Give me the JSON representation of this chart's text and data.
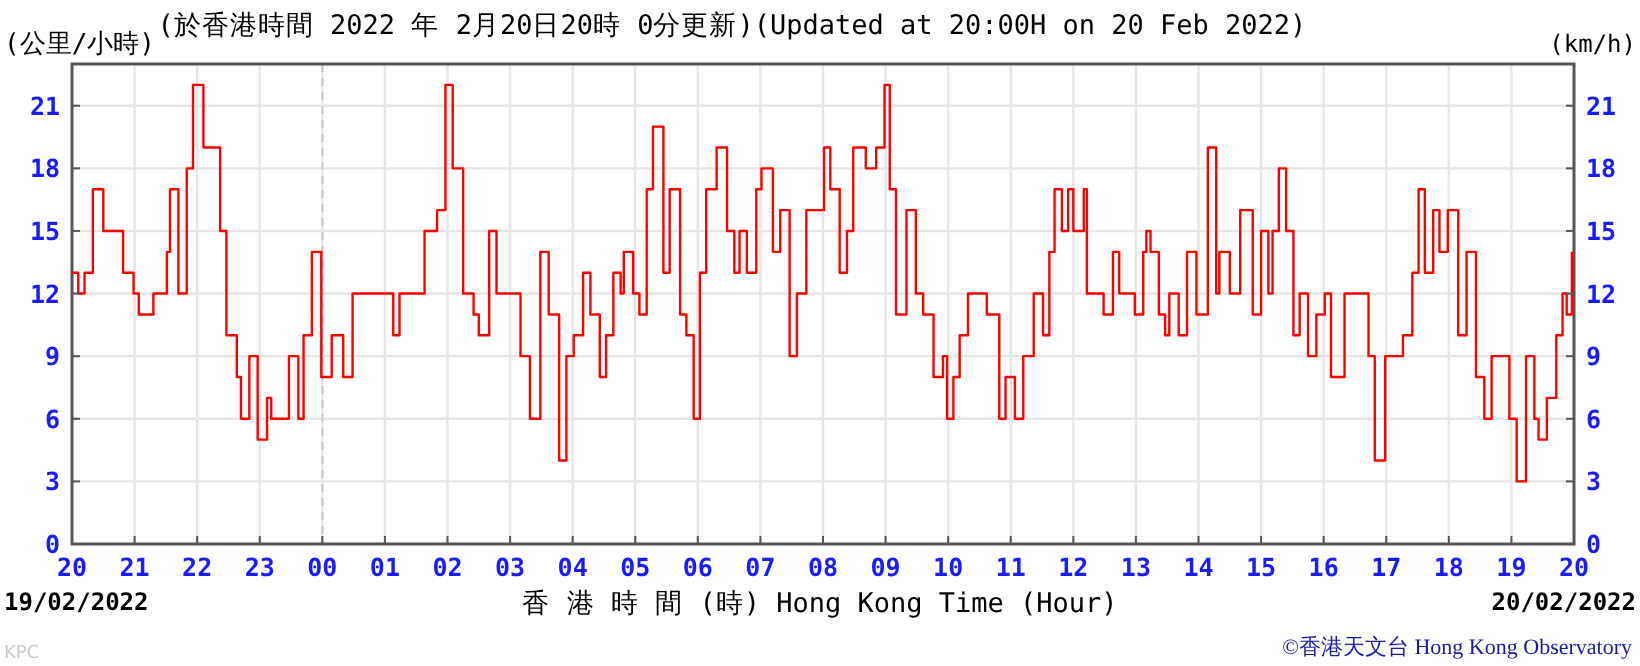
{
  "chart_data": {
    "type": "step",
    "title": "(於香港時間 2022 年 2月20日20時 0分更新)(Updated at 20:00H on 20 Feb 2022)",
    "ylabel": "(公里/小時)",
    "y2label": "(km/h)",
    "xlabel": "香 港 時 間 (時) Hong Kong Time (Hour)",
    "annotations": [
      "19/02/2022",
      "20/02/2022",
      "KPC",
      "©香港天文台 Hong Kong Observatory"
    ],
    "series": [
      {
        "color": "#ff0000",
        "x": [
          "2022-02-19T20:00",
          "2022-02-19T20:06",
          "2022-02-19T20:12",
          "2022-02-19T20:20",
          "2022-02-19T20:27",
          "2022-02-19T20:30",
          "2022-02-19T20:40",
          "2022-02-19T20:49",
          "2022-02-19T20:59",
          "2022-02-19T21:04",
          "2022-02-19T21:18",
          "2022-02-19T21:31",
          "2022-02-19T21:34",
          "2022-02-19T21:42",
          "2022-02-19T21:50",
          "2022-02-19T21:56",
          "2022-02-19T22:06",
          "2022-02-19T22:16",
          "2022-02-19T22:22",
          "2022-02-19T22:28",
          "2022-02-19T22:38",
          "2022-02-19T22:42",
          "2022-02-19T22:50",
          "2022-02-19T22:58",
          "2022-02-19T23:07",
          "2022-02-19T23:11",
          "2022-02-19T23:19",
          "2022-02-19T23:28",
          "2022-02-19T23:37",
          "2022-02-19T23:42",
          "2022-02-19T23:50",
          "2022-02-19T23:59",
          "2022-02-20T00:09",
          "2022-02-20T00:20",
          "2022-02-20T00:29",
          "2022-02-20T01:05",
          "2022-02-20T01:08",
          "2022-02-20T01:14",
          "2022-02-20T01:27",
          "2022-02-20T01:38",
          "2022-02-20T01:50",
          "2022-02-20T01:58",
          "2022-02-20T02:05",
          "2022-02-20T02:15",
          "2022-02-20T02:25",
          "2022-02-20T02:30",
          "2022-02-20T02:40",
          "2022-02-20T02:47",
          "2022-02-20T03:00",
          "2022-02-20T03:10",
          "2022-02-20T03:19",
          "2022-02-20T03:29",
          "2022-02-20T03:37",
          "2022-02-20T03:47",
          "2022-02-20T03:54",
          "2022-02-20T04:01",
          "2022-02-20T04:10",
          "2022-02-20T04:17",
          "2022-02-20T04:26",
          "2022-02-20T04:32",
          "2022-02-20T04:39",
          "2022-02-20T04:46",
          "2022-02-20T04:49",
          "2022-02-20T04:55",
          "2022-02-20T04:58",
          "2022-02-20T05:04",
          "2022-02-20T05:11",
          "2022-02-20T05:17",
          "2022-02-20T05:27",
          "2022-02-20T05:33",
          "2022-02-20T05:43",
          "2022-02-20T05:49",
          "2022-02-20T05:56",
          "2022-02-20T06:02",
          "2022-02-20T06:08",
          "2022-02-20T06:18",
          "2022-02-20T06:28",
          "2022-02-20T06:35",
          "2022-02-20T06:40",
          "2022-02-20T06:47",
          "2022-02-20T06:56",
          "2022-02-20T07:01",
          "2022-02-20T07:12",
          "2022-02-20T07:19",
          "2022-02-20T07:28",
          "2022-02-20T07:35",
          "2022-02-20T07:44",
          "2022-02-20T07:54",
          "2022-02-20T08:01",
          "2022-02-20T08:07",
          "2022-02-20T08:16",
          "2022-02-20T08:23",
          "2022-02-20T08:29",
          "2022-02-20T08:41",
          "2022-02-20T08:51",
          "2022-02-20T08:59",
          "2022-02-20T09:04",
          "2022-02-20T09:10",
          "2022-02-20T09:20",
          "2022-02-20T09:29",
          "2022-02-20T09:36",
          "2022-02-20T09:46",
          "2022-02-20T09:55",
          "2022-02-20T09:59",
          "2022-02-20T10:05",
          "2022-02-20T10:11",
          "2022-02-20T10:19",
          "2022-02-20T10:37",
          "2022-02-20T10:49",
          "2022-02-20T10:55",
          "2022-02-20T11:04",
          "2022-02-20T11:12",
          "2022-02-20T11:22",
          "2022-02-20T11:31",
          "2022-02-20T11:37",
          "2022-02-20T11:42",
          "2022-02-20T11:49",
          "2022-02-20T11:55",
          "2022-02-20T12:00",
          "2022-02-20T12:10",
          "2022-02-20T12:13",
          "2022-02-20T12:29",
          "2022-02-20T12:38",
          "2022-02-20T12:44",
          "2022-02-20T12:59",
          "2022-02-20T13:07",
          "2022-02-20T13:10",
          "2022-02-20T13:14",
          "2022-02-20T13:22",
          "2022-02-20T13:28",
          "2022-02-20T13:32",
          "2022-02-20T13:41",
          "2022-02-20T13:49",
          "2022-02-20T13:58",
          "2022-02-20T14:09",
          "2022-02-20T14:17",
          "2022-02-20T14:20",
          "2022-02-20T14:30",
          "2022-02-20T14:40",
          "2022-02-20T14:52",
          "2022-02-20T15:00",
          "2022-02-20T15:07",
          "2022-02-20T15:11",
          "2022-02-20T15:17",
          "2022-02-20T15:24",
          "2022-02-20T15:31",
          "2022-02-20T15:37",
          "2022-02-20T15:45",
          "2022-02-20T15:53",
          "2022-02-20T16:01",
          "2022-02-20T16:07",
          "2022-02-20T16:14",
          "2022-02-20T16:20",
          "2022-02-20T16:35",
          "2022-02-20T16:43",
          "2022-02-20T16:49",
          "2022-02-20T16:59",
          "2022-02-20T17:07",
          "2022-02-20T17:16",
          "2022-02-20T17:25",
          "2022-02-20T17:31",
          "2022-02-20T17:37",
          "2022-02-20T17:45",
          "2022-02-20T17:51",
          "2022-02-20T17:59",
          "2022-02-20T18:09",
          "2022-02-20T18:17",
          "2022-02-20T18:26",
          "2022-02-20T18:34",
          "2022-02-20T18:41",
          "2022-02-20T18:54",
          "2022-02-20T18:58",
          "2022-02-20T19:05",
          "2022-02-20T19:14",
          "2022-02-20T19:22",
          "2022-02-20T19:26",
          "2022-02-20T19:34",
          "2022-02-20T19:43",
          "2022-02-20T19:49",
          "2022-02-20T19:53",
          "2022-02-20T19:58"
        ],
        "values": [
          13,
          12,
          13,
          17,
          17,
          15,
          15,
          13,
          12,
          11,
          12,
          14,
          17,
          12,
          18,
          22,
          19,
          19,
          15,
          10,
          8,
          6,
          9,
          5,
          7,
          6,
          6,
          9,
          6,
          10,
          14,
          8,
          10,
          8,
          12,
          12,
          10,
          12,
          12,
          15,
          16,
          22,
          18,
          12,
          11,
          10,
          15,
          12,
          12,
          9,
          6,
          14,
          11,
          4,
          9,
          10,
          13,
          11,
          8,
          10,
          13,
          12,
          14,
          14,
          12,
          11,
          17,
          20,
          13,
          17,
          11,
          10,
          6,
          13,
          17,
          19,
          15,
          13,
          15,
          13,
          17,
          18,
          14,
          16,
          9,
          12,
          16,
          16,
          19,
          17,
          13,
          15,
          19,
          18,
          19,
          22,
          17,
          11,
          16,
          12,
          11,
          8,
          9,
          6,
          8,
          10,
          12,
          11,
          6,
          8,
          6,
          9,
          12,
          10,
          14,
          17,
          15,
          17,
          15,
          17,
          12,
          11,
          14,
          12,
          11,
          14,
          15,
          14,
          11,
          10,
          12,
          10,
          14,
          11,
          19,
          12,
          14,
          12,
          16,
          11,
          15,
          12,
          15,
          18,
          15,
          10,
          12,
          9,
          11,
          12,
          8,
          8,
          12,
          12,
          9,
          4,
          9,
          9,
          10,
          13,
          17,
          13,
          16,
          14,
          16,
          10,
          14,
          8,
          6,
          9,
          9,
          6,
          3,
          9,
          6,
          5,
          7,
          10,
          12,
          11,
          14
        ]
      }
    ],
    "xlim": [
      "2022-02-19T20:00",
      "2022-02-20T20:00"
    ],
    "xticks": [
      {
        "value": "2022-02-19T20:00",
        "label": "20"
      },
      {
        "value": "2022-02-19T21:00",
        "label": "21"
      },
      {
        "value": "2022-02-19T22:00",
        "label": "22"
      },
      {
        "value": "2022-02-19T23:00",
        "label": "23"
      },
      {
        "value": "2022-02-20T00:00",
        "label": "00"
      },
      {
        "value": "2022-02-20T01:00",
        "label": "01"
      },
      {
        "value": "2022-02-20T02:00",
        "label": "02"
      },
      {
        "value": "2022-02-20T03:00",
        "label": "03"
      },
      {
        "value": "2022-02-20T04:00",
        "label": "04"
      },
      {
        "value": "2022-02-20T05:00",
        "label": "05"
      },
      {
        "value": "2022-02-20T06:00",
        "label": "06"
      },
      {
        "value": "2022-02-20T07:00",
        "label": "07"
      },
      {
        "value": "2022-02-20T08:00",
        "label": "08"
      },
      {
        "value": "2022-02-20T09:00",
        "label": "09"
      },
      {
        "value": "2022-02-20T10:00",
        "label": "10"
      },
      {
        "value": "2022-02-20T11:00",
        "label": "11"
      },
      {
        "value": "2022-02-20T12:00",
        "label": "12"
      },
      {
        "value": "2022-02-20T13:00",
        "label": "13"
      },
      {
        "value": "2022-02-20T14:00",
        "label": "14"
      },
      {
        "value": "2022-02-20T15:00",
        "label": "15"
      },
      {
        "value": "2022-02-20T16:00",
        "label": "16"
      },
      {
        "value": "2022-02-20T17:00",
        "label": "17"
      },
      {
        "value": "2022-02-20T18:00",
        "label": "18"
      },
      {
        "value": "2022-02-20T19:00",
        "label": "19"
      },
      {
        "value": "2022-02-20T20:00",
        "label": "20"
      }
    ],
    "ylim": [
      0,
      23
    ],
    "yticks": [
      0,
      3,
      6,
      9,
      12,
      15,
      18,
      21
    ],
    "y2lim": [
      0,
      23
    ],
    "y2ticks": [
      0,
      3,
      6,
      9,
      12,
      15,
      18,
      21
    ],
    "ref_lines": [
      {
        "axis": "x",
        "value": "2022-02-20T00:00",
        "line_style": "dashed",
        "color": "#cccccc"
      }
    ],
    "grid": true,
    "marker": "none",
    "line_style": "solid"
  }
}
